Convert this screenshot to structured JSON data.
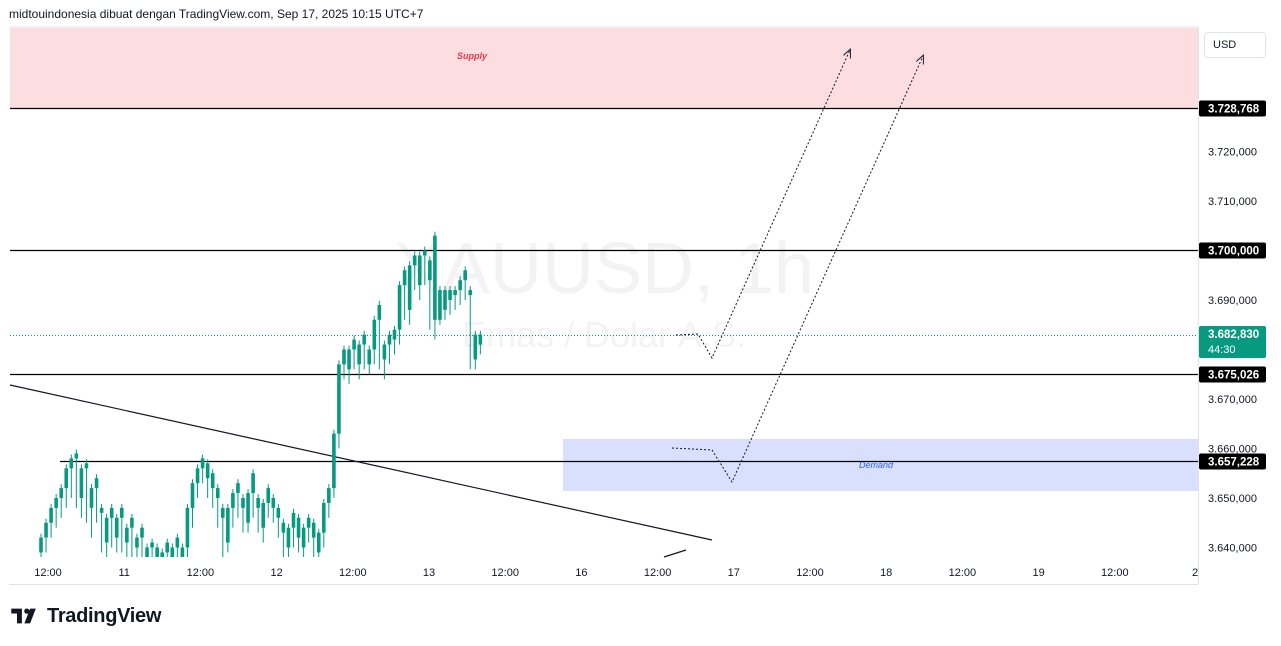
{
  "caption": "midtouindonesia dibuat dengan TradingView.com, Sep 17, 2025 10:15 UTC+7",
  "watermark": {
    "symbol": "XAUUSD, 1h",
    "description": "Emas / Dolar A.S."
  },
  "currency_button": "USD",
  "zones": {
    "supply_label": "Supply",
    "demand_label": "Demand"
  },
  "price_badges": [
    {
      "label": "3.728,768",
      "style": "black"
    },
    {
      "label": "3.700,000",
      "style": "black"
    },
    {
      "label": "3.682,830",
      "sub": "44:30",
      "style": "green"
    },
    {
      "label": "3.675,026",
      "style": "black"
    },
    {
      "label": "3.657,228",
      "style": "black"
    }
  ],
  "footer": {
    "brand": "TradingView"
  },
  "colors": {
    "up": "#089981",
    "down": "#f23645",
    "supply_fill": "#fcdde0",
    "demand_fill": "#d9e0fe",
    "current_price_line": "#089981"
  },
  "chart_data": {
    "type": "candlestick",
    "title": "",
    "y_ticks": [
      "3.720,000",
      "3.710,000",
      "3.690,000",
      "3.670,000",
      "3.660,000",
      "3.650,000",
      "3.640,000"
    ],
    "x_ticks": [
      "12:00",
      "11",
      "12:00",
      "12",
      "12:00",
      "13",
      "12:00",
      "16",
      "12:00",
      "17",
      "12:00",
      "18",
      "12:00",
      "19",
      "12:00",
      "2"
    ],
    "ylim": [
      3636.0,
      3744.0
    ],
    "grid": false,
    "horizontal_levels": [
      3728.768,
      3700.0,
      3675.026,
      3657.228
    ],
    "current_price": 3682.83,
    "supply_zone": [
      3728.768,
      3744.0
    ],
    "demand_zone": [
      3651.0,
      3661.5
    ],
    "candles": [
      [
        3639,
        3642,
        3638,
        3637
      ],
      [
        3642,
        3645,
        3641,
        3639
      ],
      [
        3645,
        3648,
        3644,
        3642
      ],
      [
        3648,
        3650,
        3647,
        3644
      ],
      [
        3650,
        3652,
        3649,
        3646
      ],
      [
        3652,
        3656,
        3651,
        3648
      ],
      [
        3656,
        3658,
        3655,
        3650
      ],
      [
        3658,
        3659,
        3650,
        3648
      ],
      [
        3650,
        3656,
        3648,
        3646
      ],
      [
        3656,
        3657,
        3648,
        3645
      ],
      [
        3648,
        3652,
        3644,
        3642
      ],
      [
        3652,
        3654,
        3647,
        3645
      ],
      [
        3647,
        3648,
        3641,
        3639
      ],
      [
        3641,
        3646,
        3639,
        3637
      ],
      [
        3646,
        3648,
        3642,
        3640
      ],
      [
        3642,
        3646,
        3641,
        3639
      ],
      [
        3646,
        3648,
        3641,
        3639
      ],
      [
        3641,
        3644,
        3639,
        3637
      ],
      [
        3644,
        3646,
        3640,
        3638
      ],
      [
        3640,
        3642,
        3638,
        3637
      ],
      [
        3642,
        3644,
        3638,
        3636
      ],
      [
        3638,
        3640,
        3637,
        3636
      ],
      [
        3640,
        3641,
        3638,
        3637
      ],
      [
        3638,
        3640,
        3637,
        3636
      ],
      [
        3637,
        3639,
        3636,
        3635
      ],
      [
        3639,
        3641,
        3637,
        3636
      ],
      [
        3637,
        3640,
        3636,
        3635
      ],
      [
        3640,
        3642,
        3638,
        3637
      ],
      [
        3638,
        3640,
        3637,
        3636
      ],
      [
        3640,
        3648,
        3638,
        3637
      ],
      [
        3648,
        3653,
        3646,
        3644
      ],
      [
        3653,
        3656,
        3652,
        3650
      ],
      [
        3656,
        3658,
        3654,
        3653
      ],
      [
        3654,
        3657,
        3652,
        3650
      ],
      [
        3652,
        3655,
        3650,
        3648
      ],
      [
        3650,
        3652,
        3646,
        3644
      ],
      [
        3646,
        3648,
        3641,
        3638
      ],
      [
        3641,
        3648,
        3640,
        3639
      ],
      [
        3648,
        3651,
        3646,
        3644
      ],
      [
        3651,
        3653,
        3648,
        3646
      ],
      [
        3648,
        3650,
        3645,
        3643
      ],
      [
        3645,
        3651,
        3644,
        3643
      ],
      [
        3651,
        3655,
        3648,
        3646
      ],
      [
        3648,
        3650,
        3644,
        3643
      ],
      [
        3644,
        3649,
        3643,
        3641
      ],
      [
        3649,
        3652,
        3648,
        3646
      ],
      [
        3648,
        3650,
        3646,
        3645
      ],
      [
        3646,
        3648,
        3643,
        3642
      ],
      [
        3643,
        3645,
        3640,
        3638
      ],
      [
        3640,
        3644,
        3639,
        3637
      ],
      [
        3644,
        3647,
        3642,
        3640
      ],
      [
        3642,
        3646,
        3640,
        3639
      ],
      [
        3640,
        3644,
        3639,
        3637
      ],
      [
        3644,
        3646,
        3642,
        3641
      ],
      [
        3642,
        3645,
        3639,
        3638
      ],
      [
        3639,
        3643,
        3638,
        3637
      ],
      [
        3643,
        3649,
        3641,
        3640
      ],
      [
        3649,
        3652,
        3648,
        3646
      ],
      [
        3652,
        3663,
        3651,
        3650
      ],
      [
        3663,
        3677,
        3662,
        3660
      ],
      [
        3677,
        3680,
        3676,
        3674
      ],
      [
        3676,
        3680,
        3675,
        3673
      ],
      [
        3680,
        3682,
        3677,
        3676
      ],
      [
        3677,
        3681,
        3676,
        3674
      ],
      [
        3681,
        3683,
        3677,
        3676
      ],
      [
        3677,
        3680,
        3676,
        3675
      ],
      [
        3680,
        3686,
        3678,
        3677
      ],
      [
        3686,
        3689,
        3678,
        3676
      ],
      [
        3678,
        3681,
        3677,
        3674
      ],
      [
        3681,
        3683,
        3679,
        3677
      ],
      [
        3682,
        3684,
        3680,
        3679
      ],
      [
        3684,
        3693,
        3683,
        3681
      ],
      [
        3693,
        3696,
        3688,
        3686
      ],
      [
        3688,
        3697,
        3686,
        3685
      ],
      [
        3697,
        3699,
        3693,
        3692
      ],
      [
        3693,
        3699,
        3692,
        3690
      ],
      [
        3699,
        3700,
        3694,
        3693
      ],
      [
        3694,
        3698,
        3686,
        3684
      ],
      [
        3686,
        3703,
        3684,
        3682
      ],
      [
        3686,
        3692,
        3686,
        3685
      ],
      [
        3688,
        3692,
        3687,
        3686
      ],
      [
        3690,
        3692,
        3688,
        3687
      ],
      [
        3691,
        3692,
        3689,
        3688
      ],
      [
        3692,
        3694,
        3690,
        3689
      ],
      [
        3694,
        3696,
        3691,
        3690
      ],
      [
        3691,
        3692,
        3678,
        3676
      ],
      [
        3678,
        3683,
        3677,
        3676
      ],
      [
        3681,
        3683,
        3680,
        3679
      ]
    ]
  }
}
